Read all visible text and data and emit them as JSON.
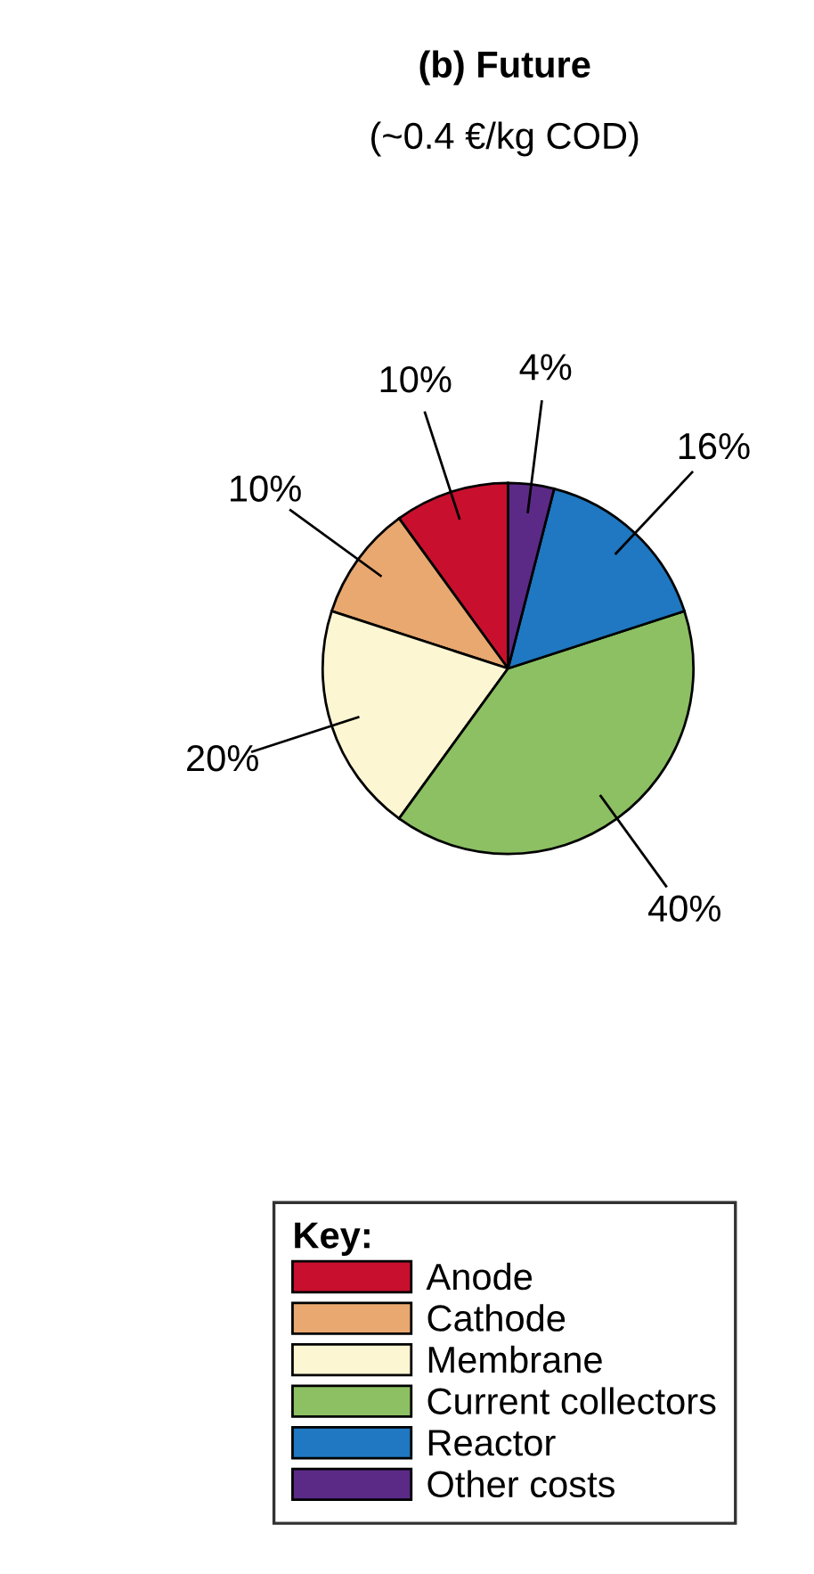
{
  "chart_data": {
    "type": "pie",
    "title": "(b) Future",
    "subtitle": "(~0.4 €/kg COD)",
    "legend_title": "Key:",
    "categories": [
      "Anode",
      "Cathode",
      "Membrane",
      "Current collectors",
      "Reactor",
      "Other costs"
    ],
    "values": [
      10,
      10,
      20,
      40,
      16,
      4
    ],
    "colors": [
      "#c8102e",
      "#e8a870",
      "#fdf6d2",
      "#8cc063",
      "#1f78c1",
      "#5b2a86"
    ],
    "value_labels": [
      "10%",
      "10%",
      "20%",
      "40%",
      "16%",
      "4%"
    ],
    "legend": "bottom"
  }
}
